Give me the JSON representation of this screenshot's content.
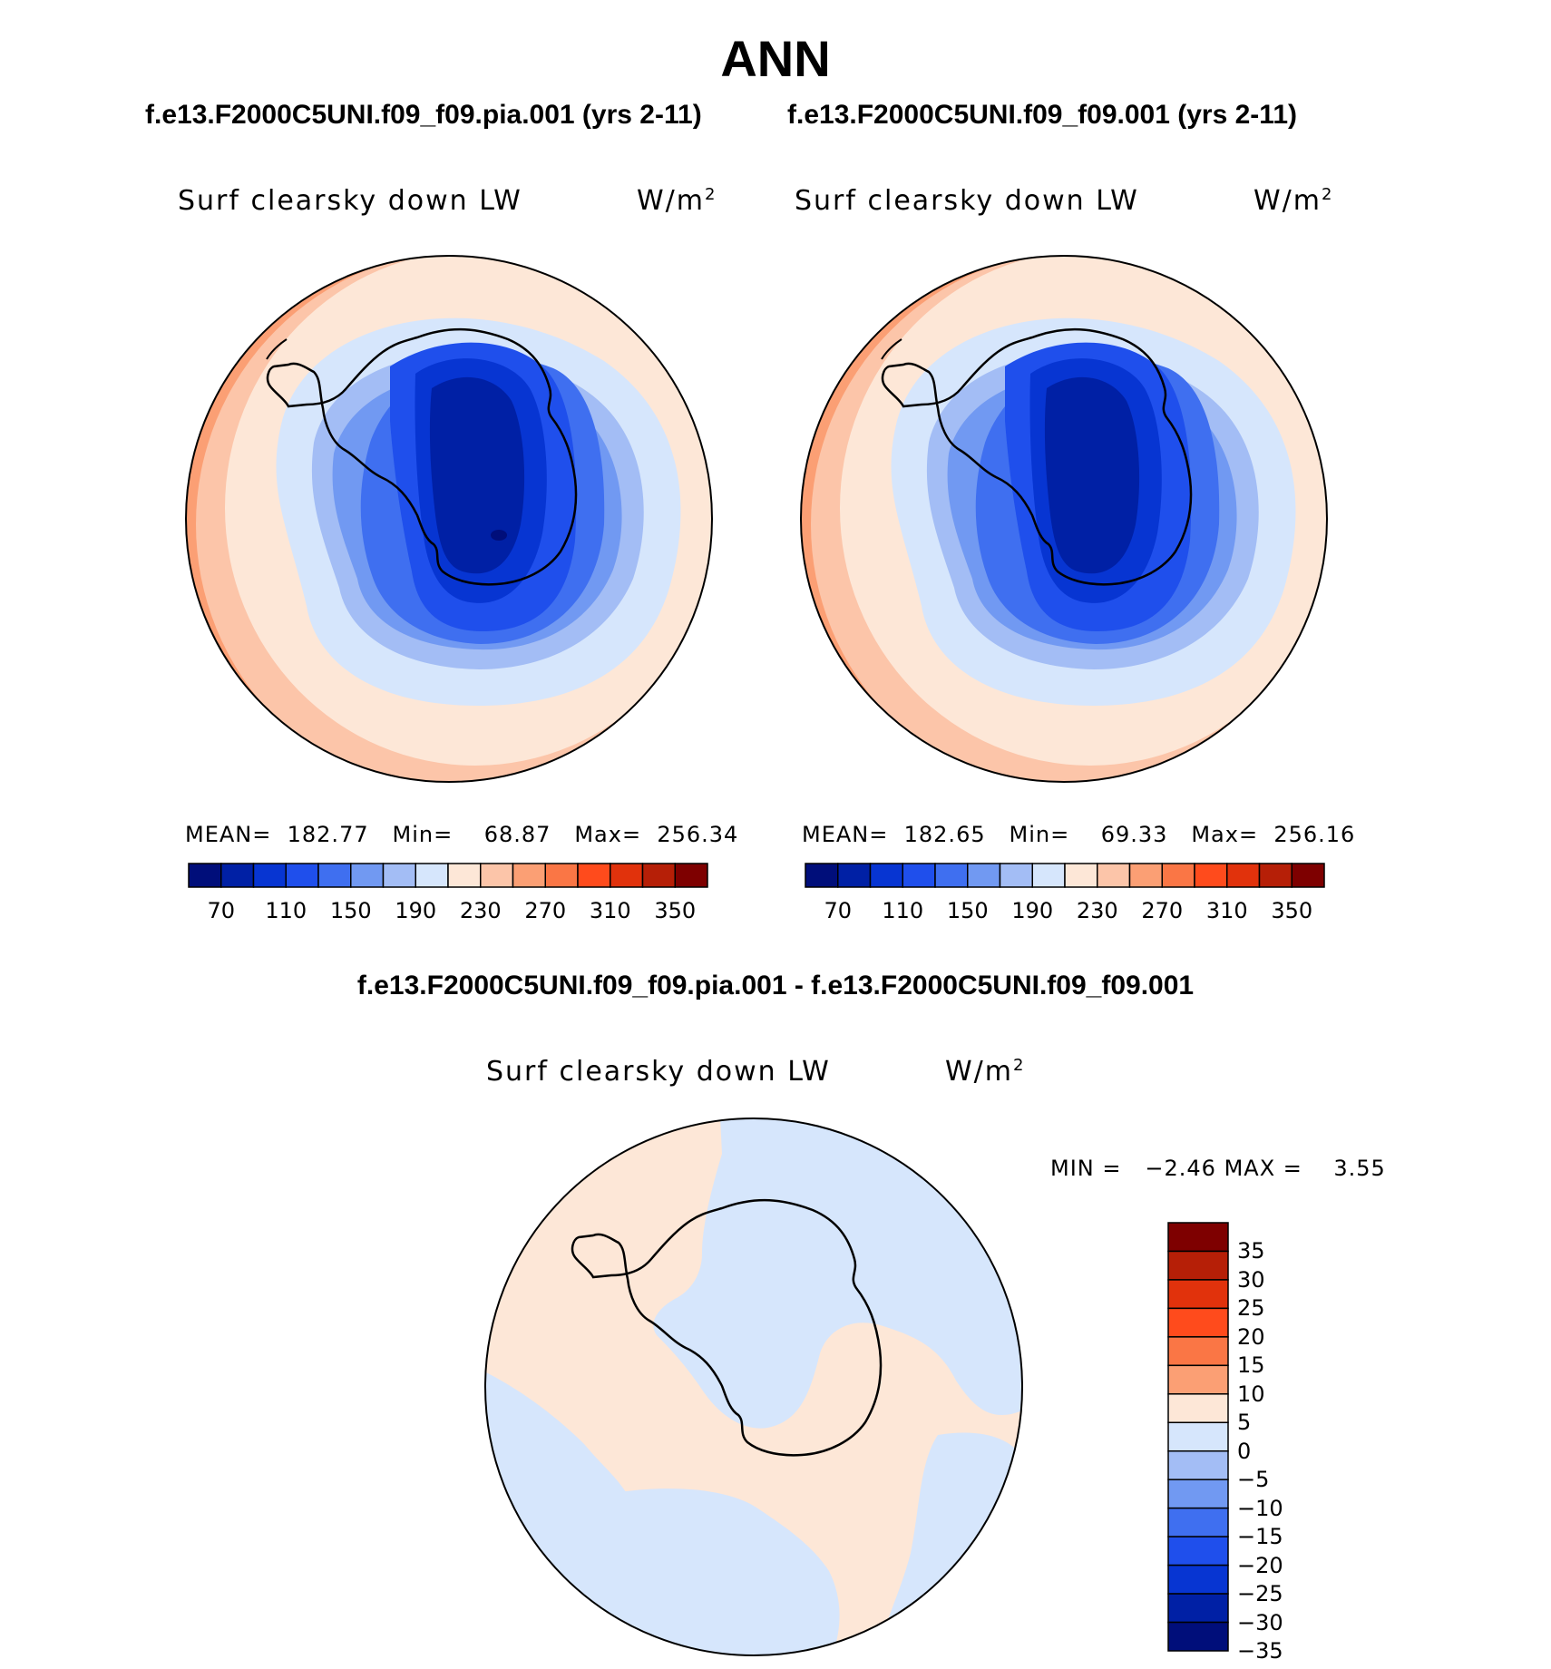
{
  "main_title": "ANN",
  "case_titles": {
    "left": "f.e13.F2000C5UNI.f09_f09.pia.001 (yrs 2-11)",
    "right": "f.e13.F2000C5UNI.f09_f09.001 (yrs 2-11)"
  },
  "diff_title": "f.e13.F2000C5UNI.f09_f09.pia.001 - f.e13.F2000C5UNI.f09_f09.001",
  "panels": [
    {
      "variable": "Surf clearsky down LW",
      "units_base": "W/m",
      "units_exp": "2",
      "stats": {
        "mean_label": "MEAN=",
        "mean": "182.77",
        "min_label": "Min=",
        "min": "68.87",
        "max_label": "Max=",
        "max": "256.34"
      }
    },
    {
      "variable": "Surf clearsky down LW",
      "units_base": "W/m",
      "units_exp": "2",
      "stats": {
        "mean_label": "MEAN=",
        "mean": "182.65",
        "min_label": "Min=",
        "min": "69.33",
        "max_label": "Max=",
        "max": "256.16"
      }
    }
  ],
  "diff_panel": {
    "variable": "Surf clearsky down LW",
    "units_base": "W/m",
    "units_exp": "2",
    "stats": {
      "min_label": "MIN =",
      "min": "−2.46",
      "max_label": "MAX =",
      "max": "3.55"
    }
  },
  "colorbar": {
    "colors": [
      "#000e7a",
      "#0020a5",
      "#0735d2",
      "#1f4fec",
      "#3f6ff0",
      "#7199f2",
      "#a3bdf5",
      "#d6e6fc",
      "#fde7d7",
      "#fcc5a9",
      "#fb9f74",
      "#fa7645",
      "#ff4b1c",
      "#e1320c",
      "#b61f07",
      "#7e0000"
    ],
    "tick_labels": [
      "70",
      "110",
      "150",
      "190",
      "230",
      "270",
      "310",
      "350"
    ]
  },
  "diff_colorbar": {
    "colors_top_to_bottom": [
      "#7e0000",
      "#b61f07",
      "#e1320c",
      "#ff4b1c",
      "#fa7645",
      "#fb9f74",
      "#fde7d7",
      "#d6e6fc",
      "#a3bdf5",
      "#7199f2",
      "#3f6ff0",
      "#1f4fec",
      "#0735d2",
      "#0020a5",
      "#000e7a"
    ],
    "tick_labels": [
      "35",
      "30",
      "25",
      "20",
      "15",
      "10",
      "5",
      "0",
      "−5",
      "−10",
      "−15",
      "−20",
      "−25",
      "−30",
      "−35"
    ]
  }
}
